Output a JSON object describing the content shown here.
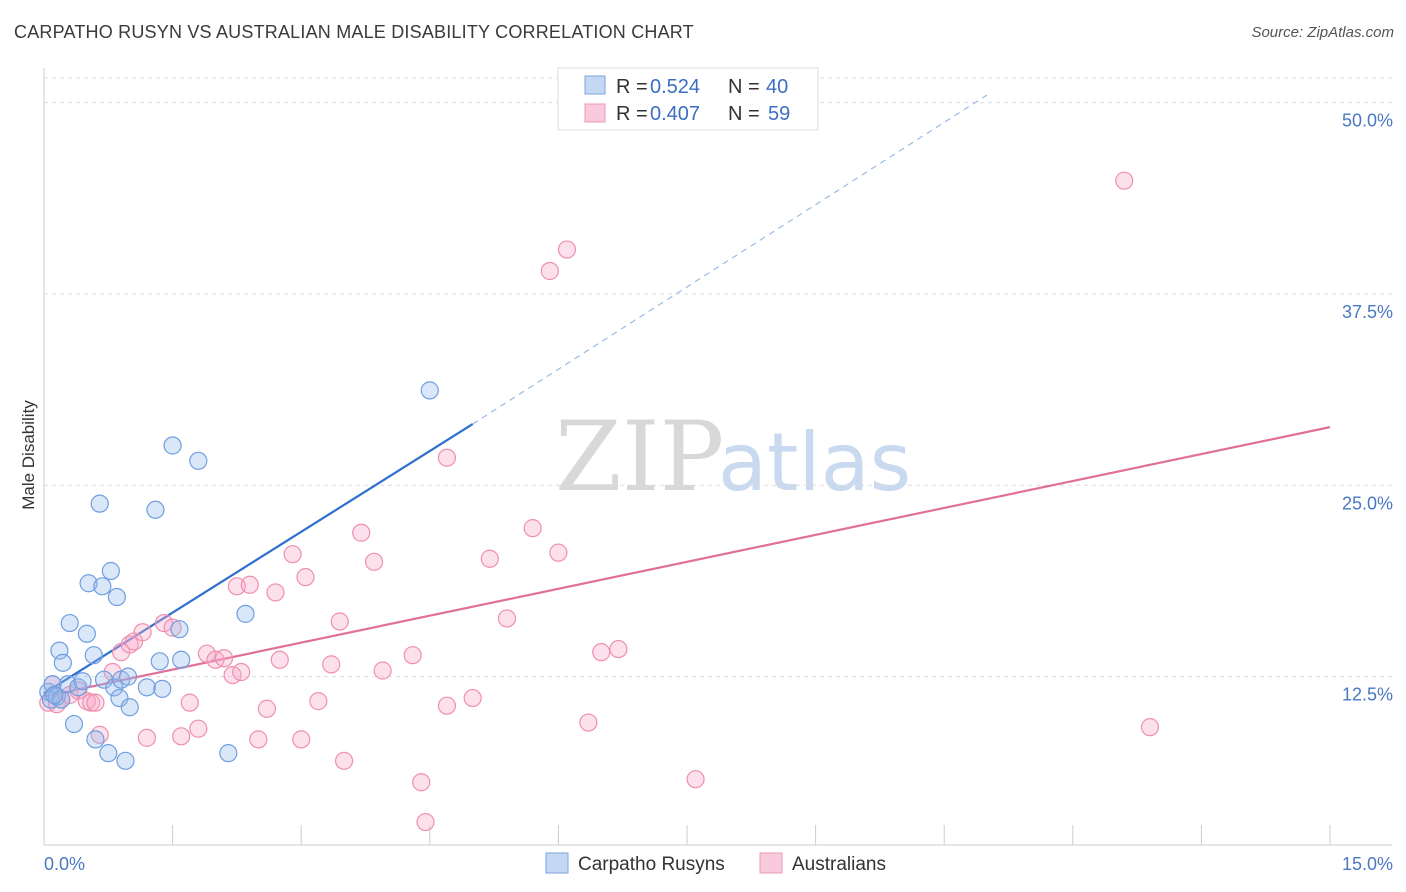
{
  "title": "CARPATHO RUSYN VS AUSTRALIAN MALE DISABILITY CORRELATION CHART",
  "source": "Source: ZipAtlas.com",
  "watermark": {
    "zip": "ZIP",
    "atlas": "atlas"
  },
  "colors": {
    "blue": "#6f9fe0",
    "blue_line": "#2f6fd0",
    "pink": "#ef8fb0",
    "pink_line": "#e0709a",
    "grid": "#dcdcdc"
  },
  "legend": {
    "row1": {
      "r_label": "R =",
      "r_value": "0.524",
      "n_label": "N =",
      "n_value": "40"
    },
    "row2": {
      "r_label": "R =",
      "r_value": "0.407",
      "n_label": "N =",
      "n_value": "59"
    }
  },
  "bottom_legend": [
    "Carpatho Rusyns",
    "Australians"
  ],
  "chart_data": {
    "type": "scatter",
    "xlabel": "",
    "ylabel": "Male Disability",
    "xlim": [
      0,
      15
    ],
    "ylim": [
      1.5,
      52
    ],
    "x_tick_labels": [
      "0.0%",
      "15.0%"
    ],
    "y_ticks": [
      12.5,
      25.0,
      37.5,
      50.0
    ],
    "y_tick_labels": [
      "12.5%",
      "25.0%",
      "37.5%",
      "50.0%"
    ],
    "series": [
      {
        "name": "Carpatho Rusyns",
        "color": "#6f9fe0",
        "trend": {
          "x0": 0.0,
          "y0": 11.4,
          "x1": 5.0,
          "y1": 29.0,
          "dash_to_x": 11.0,
          "dash_to_y": 50.5
        },
        "points": [
          [
            0.05,
            11.5
          ],
          [
            0.08,
            11.0
          ],
          [
            0.1,
            12.0
          ],
          [
            0.15,
            11.2
          ],
          [
            0.18,
            14.2
          ],
          [
            0.2,
            11.0
          ],
          [
            0.22,
            13.4
          ],
          [
            0.28,
            12.0
          ],
          [
            0.3,
            16.0
          ],
          [
            0.35,
            9.4
          ],
          [
            0.4,
            11.8
          ],
          [
            0.45,
            12.2
          ],
          [
            0.5,
            15.3
          ],
          [
            0.52,
            18.6
          ],
          [
            0.58,
            13.9
          ],
          [
            0.6,
            8.4
          ],
          [
            0.65,
            23.8
          ],
          [
            0.68,
            18.4
          ],
          [
            0.7,
            12.3
          ],
          [
            0.75,
            7.5
          ],
          [
            0.78,
            19.4
          ],
          [
            0.82,
            11.8
          ],
          [
            0.85,
            17.7
          ],
          [
            0.88,
            11.1
          ],
          [
            0.9,
            12.3
          ],
          [
            0.95,
            7.0
          ],
          [
            0.98,
            12.5
          ],
          [
            1.0,
            10.5
          ],
          [
            1.2,
            11.8
          ],
          [
            1.3,
            23.4
          ],
          [
            1.35,
            13.5
          ],
          [
            1.38,
            11.7
          ],
          [
            1.5,
            27.6
          ],
          [
            1.6,
            13.6
          ],
          [
            1.58,
            15.6
          ],
          [
            1.8,
            26.6
          ],
          [
            2.15,
            7.5
          ],
          [
            2.35,
            16.6
          ],
          [
            4.5,
            31.2
          ],
          [
            0.12,
            11.3
          ]
        ]
      },
      {
        "name": "Australians",
        "color": "#ef8fb0",
        "trend": {
          "x0": 0.0,
          "y0": 11.2,
          "x1": 15.0,
          "y1": 28.8
        },
        "points": [
          [
            0.05,
            10.8
          ],
          [
            0.1,
            12.0
          ],
          [
            0.15,
            10.7
          ],
          [
            0.2,
            11.0
          ],
          [
            0.3,
            11.3
          ],
          [
            0.4,
            11.6
          ],
          [
            0.5,
            10.9
          ],
          [
            0.55,
            10.8
          ],
          [
            0.6,
            10.8
          ],
          [
            0.65,
            8.7
          ],
          [
            0.8,
            12.8
          ],
          [
            0.9,
            14.1
          ],
          [
            1.0,
            14.6
          ],
          [
            1.05,
            14.8
          ],
          [
            1.15,
            15.4
          ],
          [
            1.2,
            8.5
          ],
          [
            1.4,
            16.0
          ],
          [
            1.5,
            15.7
          ],
          [
            1.6,
            8.6
          ],
          [
            1.7,
            10.8
          ],
          [
            1.8,
            9.1
          ],
          [
            1.9,
            14.0
          ],
          [
            2.0,
            13.6
          ],
          [
            2.1,
            13.7
          ],
          [
            2.2,
            12.6
          ],
          [
            2.3,
            12.8
          ],
          [
            2.25,
            18.4
          ],
          [
            2.4,
            18.5
          ],
          [
            2.5,
            8.4
          ],
          [
            2.6,
            10.4
          ],
          [
            2.7,
            18.0
          ],
          [
            2.75,
            13.6
          ],
          [
            2.9,
            20.5
          ],
          [
            3.0,
            8.4
          ],
          [
            3.05,
            19.0
          ],
          [
            3.2,
            10.9
          ],
          [
            3.35,
            13.3
          ],
          [
            3.45,
            16.1
          ],
          [
            3.5,
            7.0
          ],
          [
            3.7,
            21.9
          ],
          [
            3.85,
            20.0
          ],
          [
            3.95,
            12.9
          ],
          [
            4.3,
            13.9
          ],
          [
            4.4,
            5.6
          ],
          [
            4.45,
            3.0
          ],
          [
            4.7,
            10.6
          ],
          [
            4.7,
            26.8
          ],
          [
            5.0,
            11.1
          ],
          [
            5.2,
            20.2
          ],
          [
            5.4,
            16.3
          ],
          [
            5.7,
            22.2
          ],
          [
            5.9,
            39.0
          ],
          [
            6.0,
            20.6
          ],
          [
            6.1,
            40.4
          ],
          [
            6.35,
            9.5
          ],
          [
            6.5,
            14.1
          ],
          [
            6.7,
            14.3
          ],
          [
            7.6,
            5.8
          ],
          [
            12.6,
            44.9
          ],
          [
            12.9,
            9.2
          ]
        ]
      }
    ]
  }
}
